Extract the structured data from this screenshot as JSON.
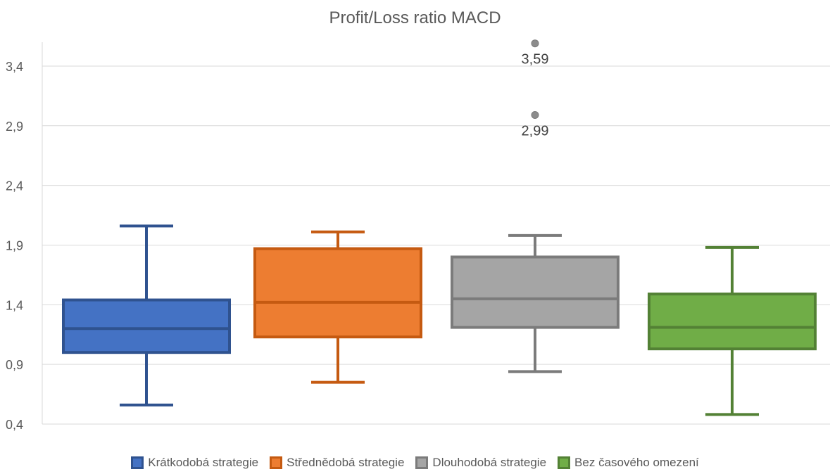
{
  "chart_data": {
    "type": "box",
    "title": "Profit/Loss ratio MACD",
    "ylim": [
      0.4,
      3.6
    ],
    "yticks": [
      "0,4",
      "0,9",
      "1,4",
      "1,9",
      "2,4",
      "2,9",
      "3,4"
    ],
    "ytick_values": [
      0.4,
      0.9,
      1.4,
      1.9,
      2.4,
      2.9,
      3.4
    ],
    "grid": true,
    "legend_position": "bottom",
    "series": [
      {
        "name": "Krátkodobá strategie",
        "fill": "#4472C4",
        "stroke": "#2F528F",
        "min": 0.56,
        "q1": 1.0,
        "median": 1.2,
        "q3": 1.44,
        "max": 2.06,
        "outliers": []
      },
      {
        "name": "Střednědobá strategie",
        "fill": "#ED7D31",
        "stroke": "#C55A11",
        "min": 0.75,
        "q1": 1.13,
        "median": 1.42,
        "q3": 1.87,
        "max": 2.01,
        "outliers": []
      },
      {
        "name": "Dlouhodobá strategie",
        "fill": "#A5A5A5",
        "stroke": "#7B7B7B",
        "min": 0.84,
        "q1": 1.21,
        "median": 1.45,
        "q3": 1.8,
        "max": 1.98,
        "outliers": [
          {
            "value": 3.59,
            "label": "3,59"
          },
          {
            "value": 2.99,
            "label": "2,99"
          }
        ]
      },
      {
        "name": "Bez časového omezení",
        "fill": "#70AD47",
        "stroke": "#538135",
        "min": 0.48,
        "q1": 1.03,
        "median": 1.21,
        "q3": 1.49,
        "max": 1.88,
        "outliers": []
      }
    ]
  }
}
